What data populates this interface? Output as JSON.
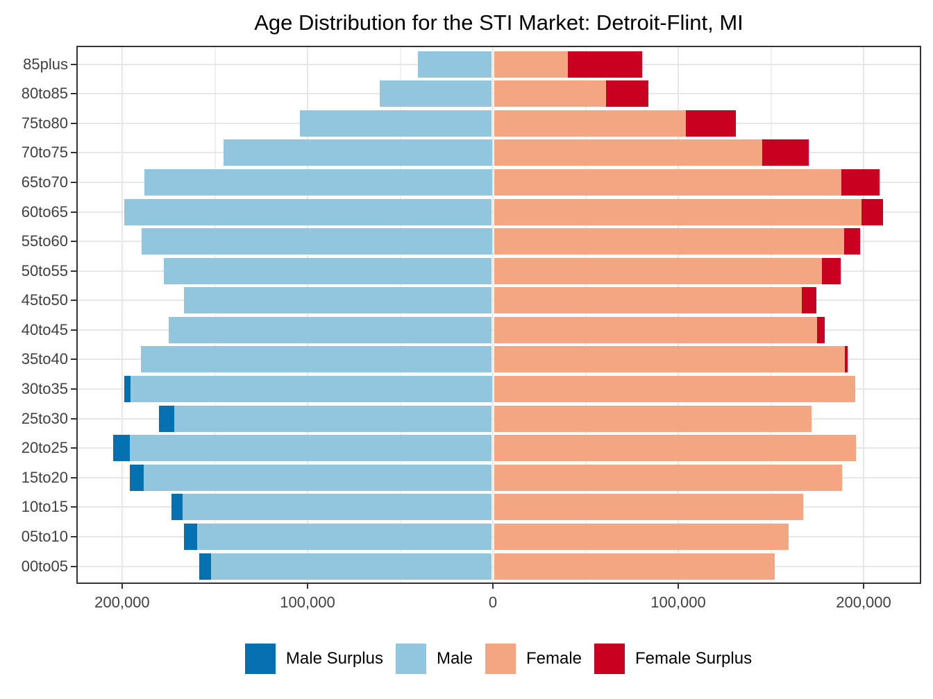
{
  "chart_data": {
    "type": "bar",
    "subtype": "population_pyramid",
    "title": "Age Distribution for the STI Market: Detroit-Flint, MI",
    "orientation": "horizontal",
    "grid": true,
    "categories_top_to_bottom": [
      "85plus",
      "80to85",
      "75to80",
      "70to75",
      "65to70",
      "60to65",
      "55to60",
      "50to55",
      "45to50",
      "40to45",
      "35to40",
      "30to35",
      "25to30",
      "20to25",
      "15to20",
      "10to15",
      "05to10",
      "00to05"
    ],
    "series": [
      {
        "name": "Male",
        "side": "left",
        "values_top_to_bottom": [
          40500,
          61000,
          104000,
          145500,
          188000,
          199000,
          189500,
          177500,
          166500,
          175000,
          190000,
          199000,
          180000,
          205000,
          196000,
          173500,
          166500,
          158500
        ]
      },
      {
        "name": "Female",
        "side": "right",
        "values_top_to_bottom": [
          80500,
          84000,
          131000,
          170500,
          208500,
          210500,
          198000,
          187500,
          174500,
          179000,
          191500,
          195500,
          172000,
          196000,
          188500,
          167500,
          159500,
          152000
        ]
      }
    ],
    "derived_segments_note": "Male Surplus = max(male-female,0) drawn at tip of left bar; Female Surplus = max(female-male,0) drawn at tip of right bar; inner portions show the matched (min) amount.",
    "x_axis": {
      "range": [
        -224700,
        231100
      ],
      "major_tick_values": [
        -200000,
        -100000,
        0,
        100000,
        200000
      ],
      "tick_labels": [
        "200,000",
        "100,000",
        "0",
        "100,000",
        "200,000"
      ],
      "minor_grid_values": [
        -150000,
        -50000,
        50000,
        150000
      ]
    },
    "legend": {
      "position": "bottom",
      "items": [
        {
          "label": "Male Surplus",
          "color": "#0571b0"
        },
        {
          "label": "Male",
          "color": "#92c5de"
        },
        {
          "label": "Female",
          "color": "#f4a582"
        },
        {
          "label": "Female Surplus",
          "color": "#ca0020"
        }
      ]
    },
    "colors": {
      "male_surplus": "#0571b0",
      "male": "#92c5de",
      "female": "#f4a582",
      "female_surplus": "#ca0020",
      "panel_border": "#333333",
      "grid_major": "#e7e7e7",
      "axis_text": "#404040"
    }
  }
}
